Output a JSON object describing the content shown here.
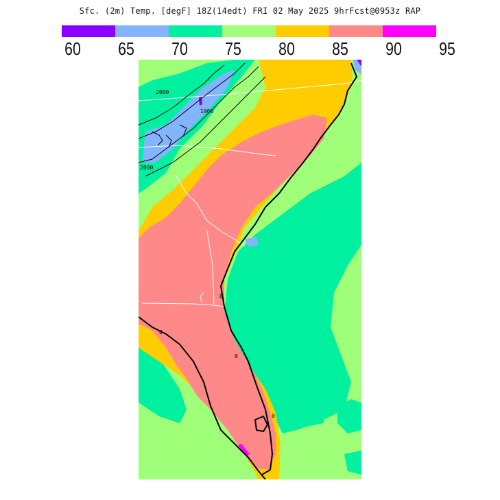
{
  "title": "Sfc. (2m) Temp.  [degF]  18Z(14edt)  FRI 02 May 2025   9hrFcst@0953z  RAP",
  "colorbar": {
    "swatches": [
      {
        "color": "#8a00ff"
      },
      {
        "color": "#82b4ff"
      },
      {
        "color": "#00f0a0"
      },
      {
        "color": "#a0ff78"
      },
      {
        "color": "#ffcc00"
      },
      {
        "color": "#ff8888"
      },
      {
        "color": "#ff00ff"
      }
    ],
    "ticks": [
      "60",
      "65",
      "70",
      "75",
      "80",
      "85",
      "90",
      "95"
    ]
  },
  "map": {
    "contour_labels": [
      "2000",
      "2000",
      "1000",
      "0",
      "0",
      "0",
      "0"
    ]
  }
}
